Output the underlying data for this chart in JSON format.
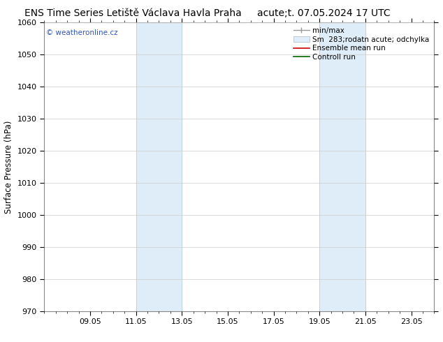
{
  "title_left": "ENS Time Series Letiště Václava Havla Praha",
  "title_right": "acute;t. 07.05.2024 17 UTC",
  "ylabel": "Surface Pressure (hPa)",
  "watermark": "© weatheronline.cz",
  "ylim": [
    970,
    1060
  ],
  "yticks": [
    970,
    980,
    990,
    1000,
    1010,
    1020,
    1030,
    1040,
    1050,
    1060
  ],
  "xtick_labels": [
    "09.05",
    "11.05",
    "13.05",
    "15.05",
    "17.05",
    "19.05",
    "21.05",
    "23.05"
  ],
  "xtick_positions": [
    2,
    4,
    6,
    8,
    10,
    12,
    14,
    16
  ],
  "xlim": [
    0,
    17
  ],
  "shaded_regions": [
    {
      "x_start": 4,
      "x_end": 6
    },
    {
      "x_start": 12,
      "x_end": 14
    }
  ],
  "shaded_color": "#deedf8",
  "shaded_edge_color": "#b8d4e8",
  "background_color": "#ffffff",
  "grid_color": "#cccccc",
  "grid_lw": 0.5,
  "title_fontsize": 10,
  "tick_fontsize": 8,
  "ylabel_fontsize": 8.5,
  "watermark_color": "#3355bb",
  "watermark_fontsize": 7.5,
  "legend_fontsize": 7.5,
  "spine_color": "#888888",
  "spine_lw": 0.8
}
